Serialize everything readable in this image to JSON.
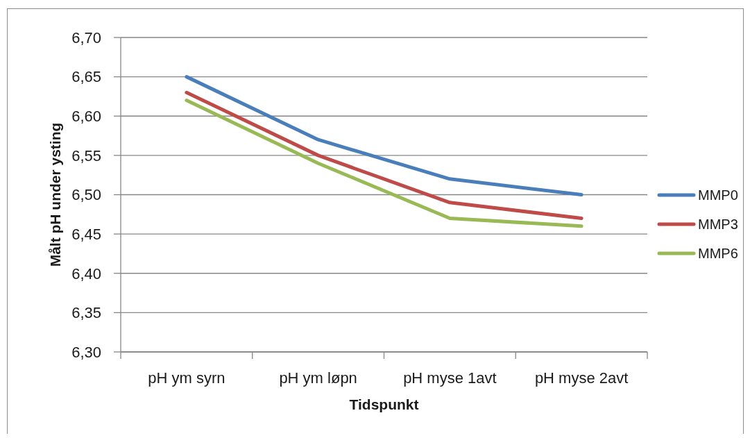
{
  "chart_data": {
    "type": "line",
    "categories": [
      "pH ym syrn",
      "pH ym løpn",
      "pH myse 1avt",
      "pH myse 2avt"
    ],
    "series": [
      {
        "name": "MMP0",
        "color": "#4a7ebb",
        "values": [
          6.65,
          6.57,
          6.52,
          6.5
        ]
      },
      {
        "name": "MMP3",
        "color": "#be4b48",
        "values": [
          6.63,
          6.55,
          6.49,
          6.47
        ]
      },
      {
        "name": "MMP6",
        "color": "#98b954",
        "values": [
          6.62,
          6.54,
          6.47,
          6.46
        ]
      }
    ],
    "xlabel": "Tidspunkt",
    "ylabel": "Målt pH under ysting",
    "ylim": [
      6.3,
      6.7
    ],
    "yticks": [
      {
        "value": 6.3,
        "label": "6,30"
      },
      {
        "value": 6.35,
        "label": "6,35"
      },
      {
        "value": 6.4,
        "label": "6,40"
      },
      {
        "value": 6.45,
        "label": "6,45"
      },
      {
        "value": 6.5,
        "label": "6,50"
      },
      {
        "value": 6.55,
        "label": "6,55"
      },
      {
        "value": 6.6,
        "label": "6,60"
      },
      {
        "value": 6.65,
        "label": "6,65"
      },
      {
        "value": 6.7,
        "label": "6,70"
      }
    ],
    "grid": "y",
    "legend": "right",
    "marker": "none"
  }
}
